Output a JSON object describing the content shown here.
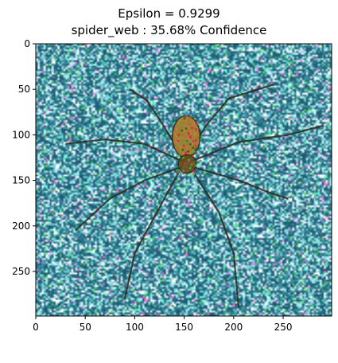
{
  "title": {
    "line1": "Epsilon = 0.9299",
    "line2": "spider_web : 35.68% Confidence"
  },
  "axes": {
    "x_range": [
      0,
      299
    ],
    "y_range": [
      0,
      299
    ],
    "y_inverted": true,
    "x_ticks": [
      "0",
      "50",
      "100",
      "150",
      "200",
      "250"
    ],
    "y_ticks": [
      "0",
      "50",
      "100",
      "150",
      "200",
      "250"
    ]
  },
  "image": {
    "subject": "adversarially perturbed image of a spider on a web",
    "noise_palette": [
      "#1f5f78",
      "#3f8fa0",
      "#79d1d1",
      "#b8f2f0",
      "#ffffff",
      "#2a7a8a",
      "#66ffdd",
      "#ff6ad5",
      "#4fdc4f",
      "#d7d7ff",
      "#8bdcff",
      "#215066"
    ],
    "spider_colors": [
      "#6b4b1a",
      "#2b2a1c",
      "#b07a2a",
      "#3a5a1f",
      "#cc3344",
      "#44aa44"
    ]
  }
}
